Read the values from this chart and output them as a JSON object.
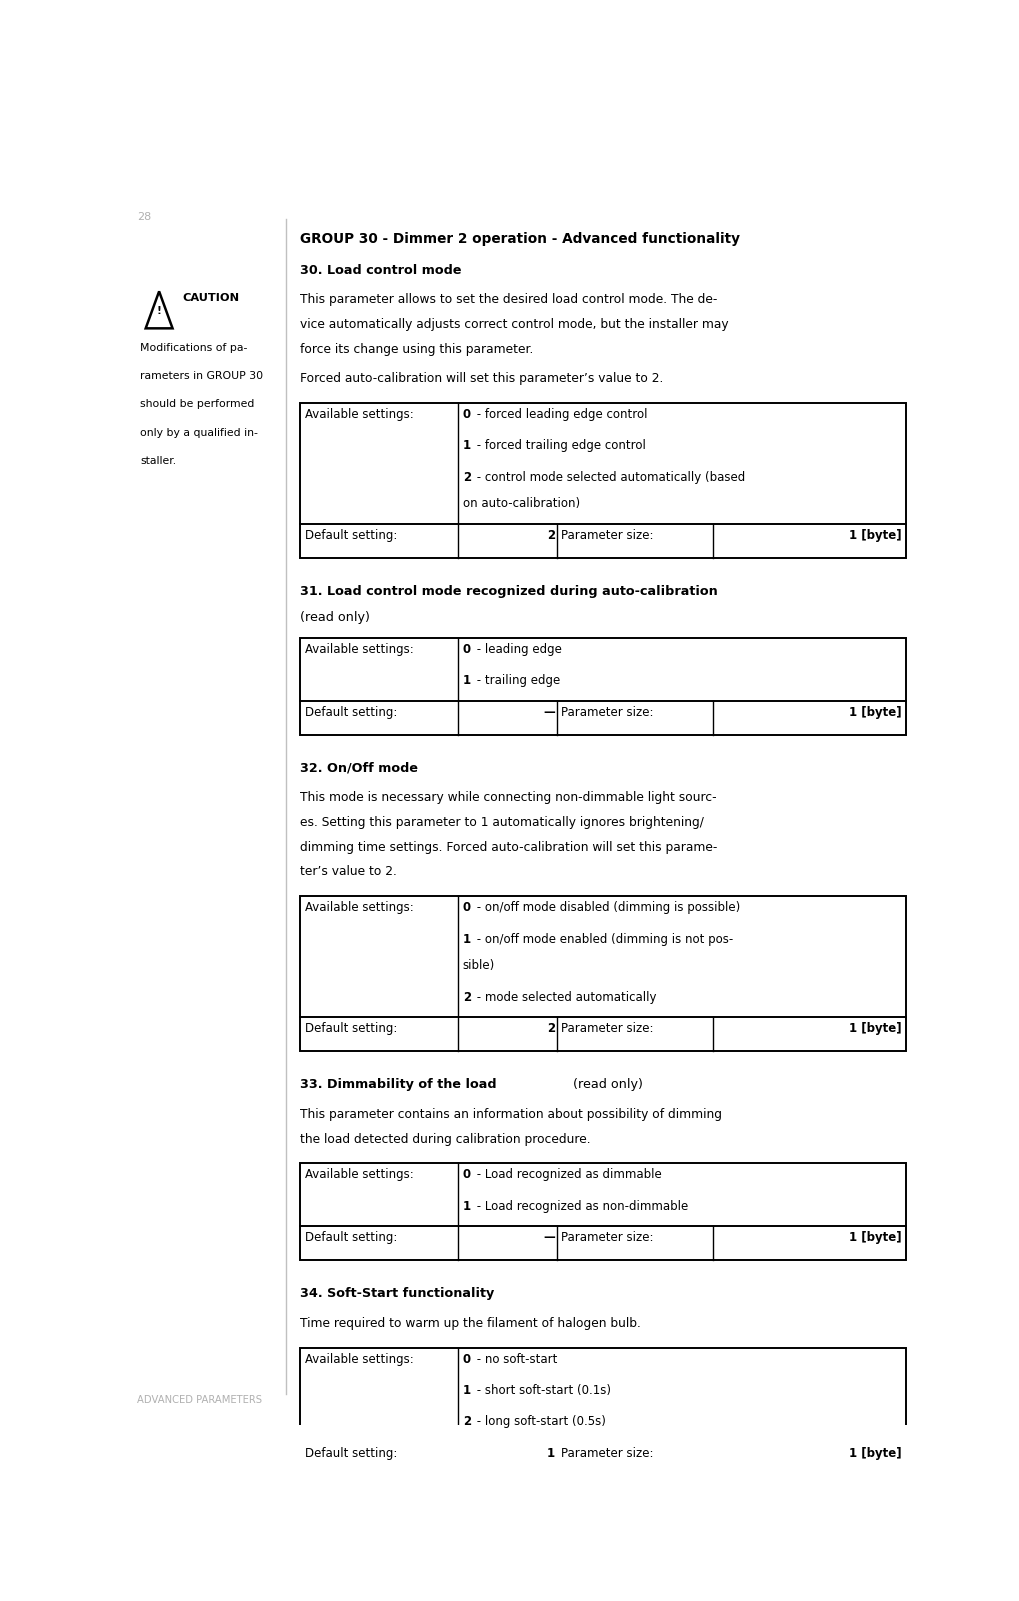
{
  "page_number": "28",
  "footer_text": "ADVANCED PARAMETERS",
  "group_title": "GROUP 30 - Dimmer 2 operation - Advanced functionality",
  "caution_title": "CAUTION",
  "vertical_line_x": 0.2,
  "sections": [
    {
      "id": 30,
      "title": "30. Load control mode",
      "title_suffix": null,
      "body_lines": [
        "This parameter allows to set the desired load control mode. The de-",
        "vice automatically adjusts correct control mode, but the installer may",
        "force its change using this parameter."
      ],
      "extra_line": "Forced auto-calibration will set this parameter’s value to 2.",
      "table": {
        "settings": [
          [
            "0",
            " - forced leading edge control"
          ],
          [
            "1",
            " - forced trailing edge control"
          ],
          [
            "2",
            " - control mode selected automatically (based\non auto-calibration)"
          ]
        ],
        "default_value": "2",
        "param_size_value": "1 [byte]"
      }
    },
    {
      "id": 31,
      "title": "31. Load control mode recognized during auto-calibration",
      "title_suffix": "(read only)",
      "body_lines": [],
      "extra_line": null,
      "table": {
        "settings": [
          [
            "0",
            " - leading edge"
          ],
          [
            "1",
            " - trailing edge"
          ]
        ],
        "default_value": "—",
        "param_size_value": "1 [byte]"
      }
    },
    {
      "id": 32,
      "title": "32. On/Off mode",
      "title_suffix": null,
      "body_lines": [
        "This mode is necessary while connecting non-dimmable light sourc-",
        "es. Setting this parameter to 1 automatically ignores brightening/",
        "dimming time settings. Forced auto-calibration will set this parame-",
        "ter’s value to 2."
      ],
      "extra_line": null,
      "table": {
        "settings": [
          [
            "0",
            " - on/off mode disabled (dimming is possible)"
          ],
          [
            "1",
            " - on/off mode enabled (dimming is not pos-\nsible)"
          ],
          [
            "2",
            " - mode selected automatically"
          ]
        ],
        "default_value": "2",
        "param_size_value": "1 [byte]"
      }
    },
    {
      "id": 33,
      "title": "33. Dimmability of the load",
      "title_suffix": "(read only)",
      "title_suffix_inline": true,
      "body_lines": [
        "This parameter contains an information about possibility of dimming",
        "the load detected during calibration procedure."
      ],
      "extra_line": null,
      "table": {
        "settings": [
          [
            "0",
            " - Load recognized as dimmable"
          ],
          [
            "1",
            " - Load recognized as non-dimmable"
          ]
        ],
        "default_value": "—",
        "param_size_value": "1 [byte]"
      }
    },
    {
      "id": 34,
      "title": "34. Soft-Start functionality",
      "title_suffix": null,
      "body_lines": [
        "Time required to warm up the filament of halogen bulb."
      ],
      "extra_line": null,
      "table": {
        "settings": [
          [
            "0",
            " - no soft-start"
          ],
          [
            "1",
            " - short soft-start (0.1s)"
          ],
          [
            "2",
            " - long soft-start (0.5s)"
          ]
        ],
        "default_value": "1",
        "param_size_value": "1 [byte]"
      }
    }
  ],
  "caution_lines": [
    "Modifications of pa-",
    "rameters in GROUP 30",
    "should be performed",
    "only by a qualified in-",
    "staller."
  ],
  "colors": {
    "background": "#ffffff",
    "text": "#000000",
    "footer_text": "#b0b0b0",
    "page_num": "#b0b0b0",
    "vertical_line": "#c0c0c0"
  }
}
